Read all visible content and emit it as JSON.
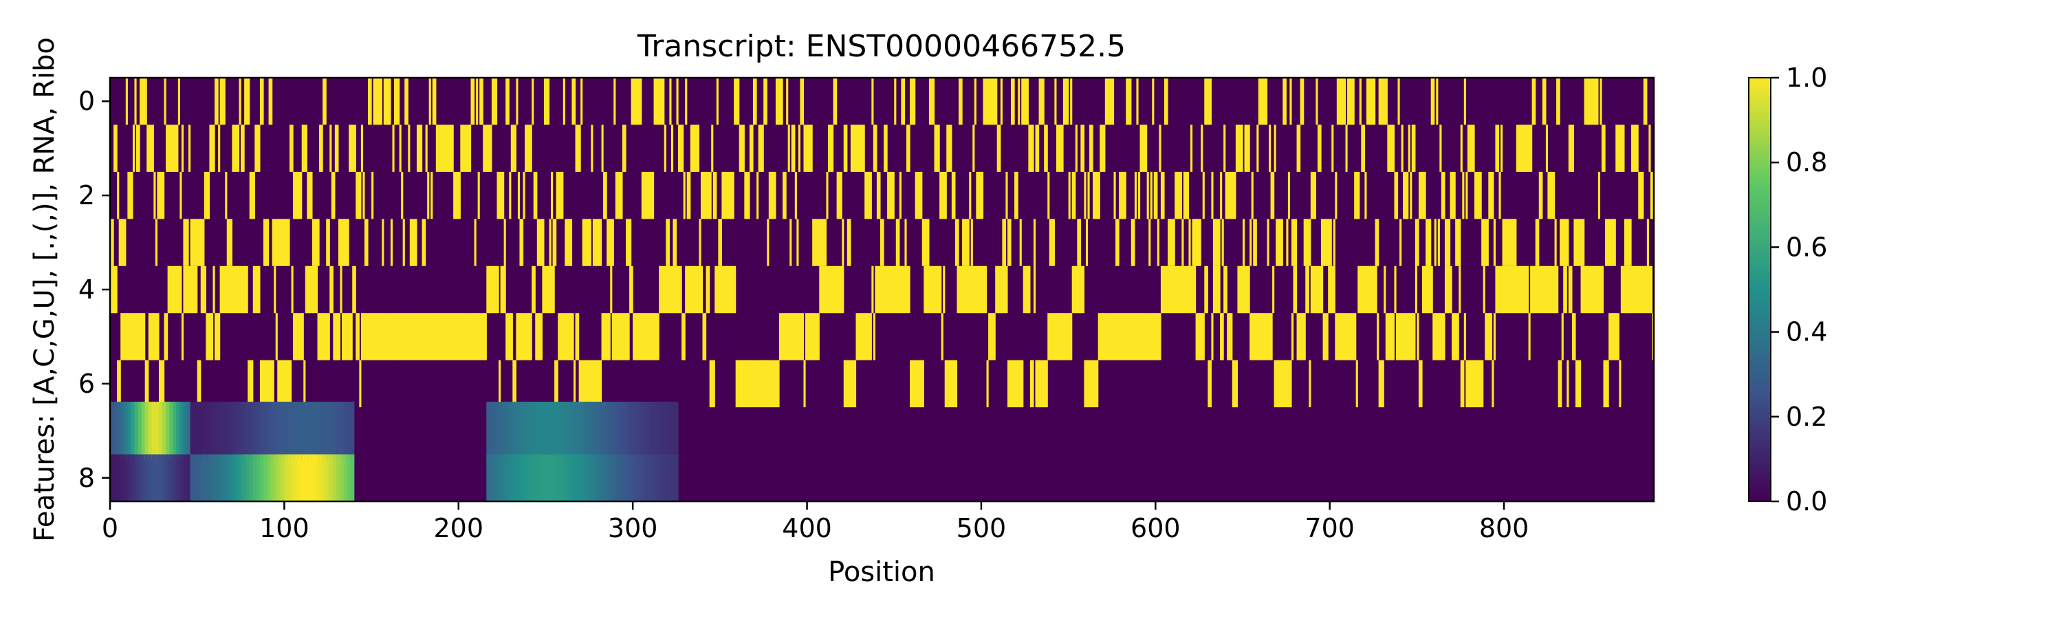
{
  "chart_data": {
    "type": "heatmap",
    "title": "Transcript: ENST00000466752.5",
    "xlabel": "Position",
    "ylabel": "Features: [A,C,G,U], [.,(,)], RNA, Ribo",
    "x_ticks": [
      0,
      100,
      200,
      300,
      400,
      500,
      600,
      700,
      800
    ],
    "y_ticks": [
      0,
      2,
      4,
      6,
      8
    ],
    "xlim": [
      0,
      886
    ],
    "rows": 9,
    "rows_meaning": [
      "A",
      "C",
      "G",
      "U",
      ".",
      "(",
      ")",
      "RNA",
      "Ribo"
    ],
    "colormap": "viridis",
    "colorbar": {
      "ticks": [
        "0.0",
        "0.2",
        "0.4",
        "0.6",
        "0.8",
        "1.0"
      ],
      "range": [
        0,
        1
      ]
    },
    "paired_regions_low_unpaired": [
      [
        145,
        215
      ],
      [
        375,
        390
      ],
      [
        560,
        600
      ]
    ],
    "rna_signal_regions": [
      {
        "start": 0,
        "end": 45,
        "peak_position": 25,
        "peak_value": 0.95
      },
      {
        "start": 45,
        "end": 140,
        "peak_position": 112,
        "peak_value": 0.3
      },
      {
        "start": 215,
        "end": 325,
        "peak_position": 250,
        "peak_value": 0.45
      }
    ],
    "ribo_signal_regions": [
      {
        "start": 0,
        "end": 45,
        "peak_position": 25,
        "peak_value": 0.25
      },
      {
        "start": 45,
        "end": 140,
        "peak_position": 112,
        "peak_value": 1.0
      },
      {
        "start": 215,
        "end": 325,
        "peak_position": 250,
        "peak_value": 0.55
      }
    ]
  },
  "colors": {
    "background_low": "#440154",
    "high": "#fde725",
    "axis": "#000000"
  }
}
